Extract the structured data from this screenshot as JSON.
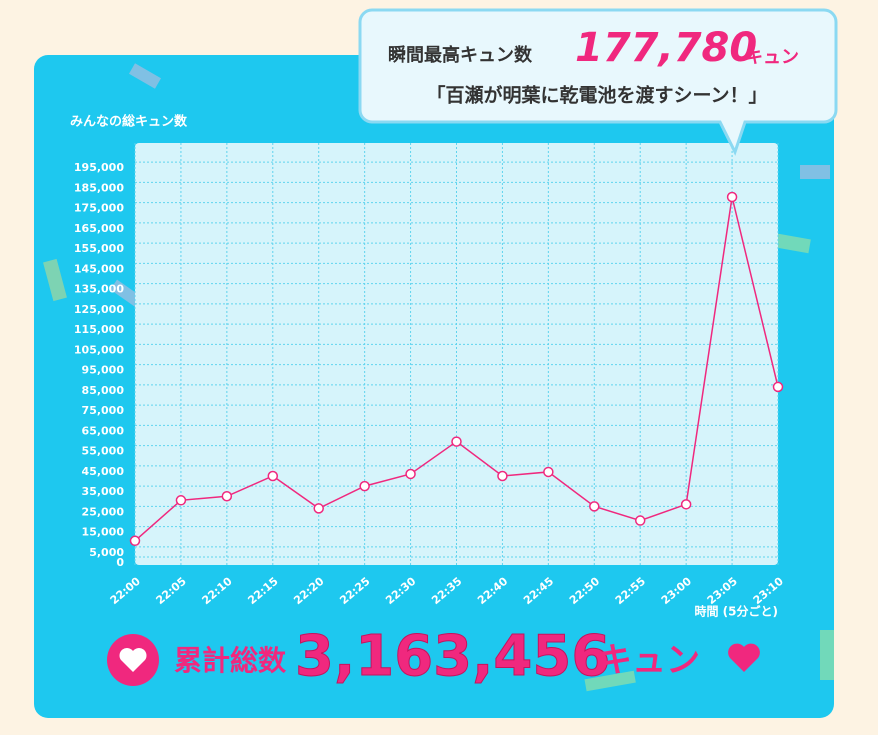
{
  "chart_data": {
    "type": "line",
    "y_label": "みんなの総キュン数",
    "x_label": "時間 (5分ごと)",
    "categories": [
      "22:00",
      "22:05",
      "22:10",
      "22:15",
      "22:20",
      "22:25",
      "22:30",
      "22:35",
      "22:40",
      "22:45",
      "22:50",
      "22:55",
      "23:00",
      "23:05",
      "23:10"
    ],
    "series": [
      {
        "name": "キュン数",
        "color": "#f0287e",
        "values": [
          8000,
          28000,
          30000,
          40000,
          24000,
          35000,
          41000,
          57000,
          40000,
          42000,
          25000,
          18000,
          26000,
          177780,
          84000
        ]
      }
    ],
    "ylim": [
      0,
      200000
    ],
    "yticks": [
      0,
      {
        "value": 5000,
        "label": "5,000"
      },
      {
        "value": 15000,
        "label": "15,000"
      },
      {
        "value": 25000,
        "label": "25,000"
      },
      {
        "value": 35000,
        "label": "35,000"
      },
      {
        "value": 45000,
        "label": "45,000"
      },
      {
        "value": 55000,
        "label": "55,000"
      },
      {
        "value": 65000,
        "label": "65,000"
      },
      {
        "value": 75000,
        "label": "75,000"
      },
      {
        "value": 85000,
        "label": "85,000"
      },
      {
        "value": 95000,
        "label": "95,000"
      },
      {
        "value": 105000,
        "label": "105,000"
      },
      {
        "value": 115000,
        "label": "115,000"
      },
      {
        "value": 125000,
        "label": "125,000"
      },
      {
        "value": 135000,
        "label": "135,000"
      },
      {
        "value": 145000,
        "label": "145,000"
      },
      {
        "value": 155000,
        "label": "155,000"
      },
      {
        "value": 165000,
        "label": "165,000"
      },
      {
        "value": 175000,
        "label": "175,000"
      },
      {
        "value": 185000,
        "label": "185,000"
      },
      {
        "value": 195000,
        "label": "195,000"
      }
    ],
    "grid": true
  },
  "peak": {
    "title": "瞬間最高キュン数",
    "value": 177780,
    "value_label": "177,780",
    "unit": "キュン",
    "scene": "「百瀬が明葉に乾電池を渡すシーン！」"
  },
  "total": {
    "title": "累計総数",
    "value": 3163456,
    "value_label": "3,163,456",
    "unit": "キュン"
  }
}
